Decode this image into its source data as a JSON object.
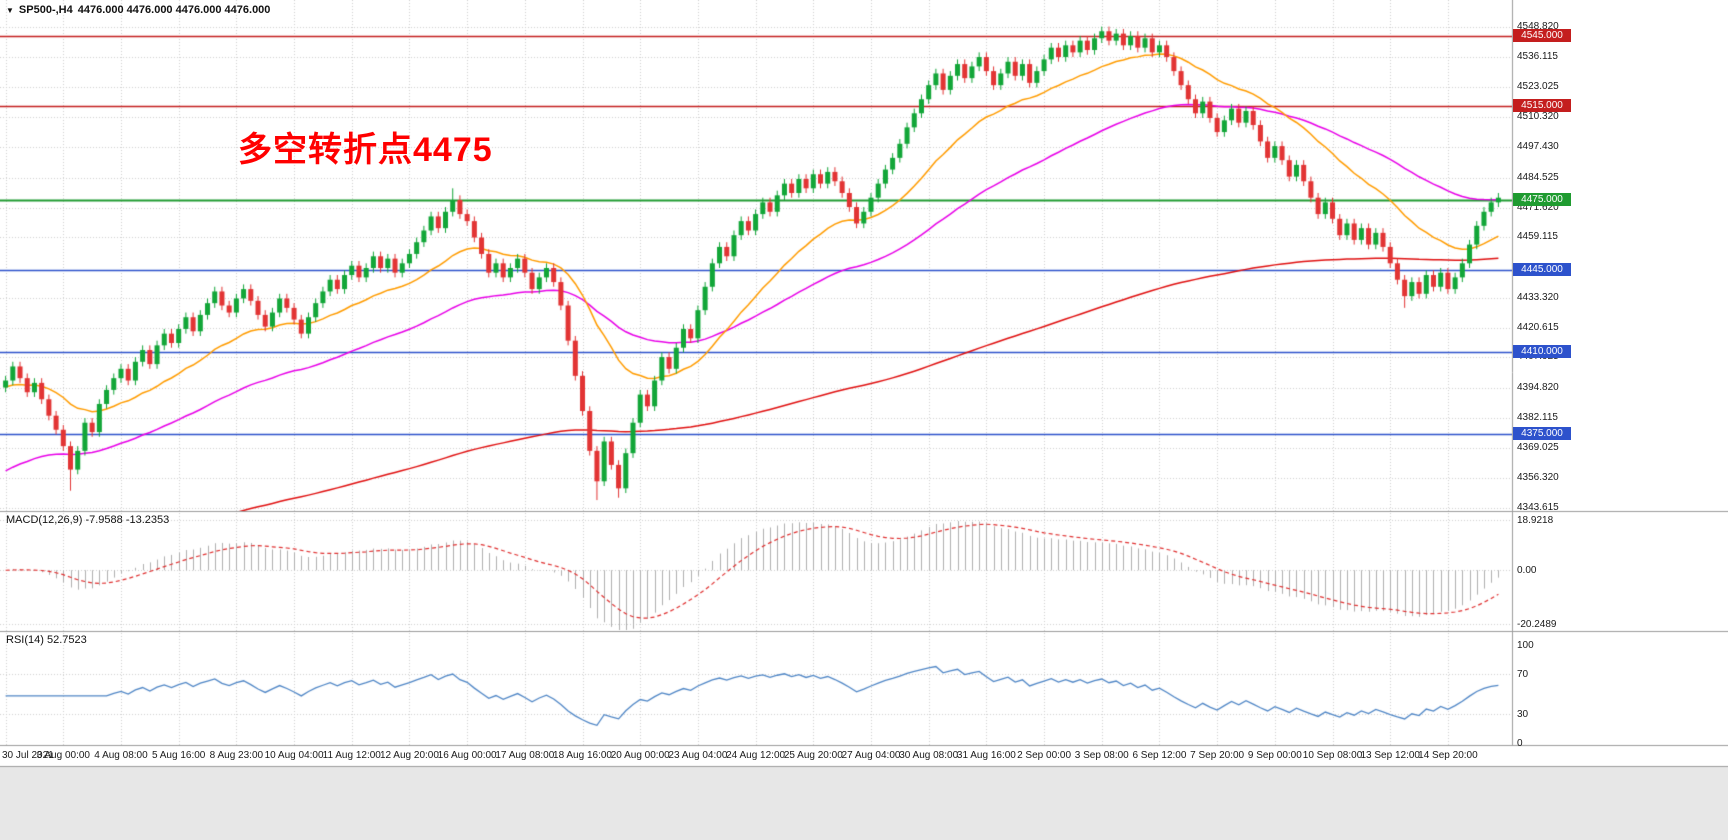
{
  "window": {
    "title_icon": "▼",
    "title_symbol": "SP500-,H4",
    "title_quotes": "4476.000 4476.000 4476.000 4476.000"
  },
  "annotation": {
    "text": "多空转折点4475",
    "color": "#ff0000"
  },
  "panes": {
    "macd": {
      "label": "MACD(12,26,9) -7.9588 -13.2353"
    },
    "rsi": {
      "label": "RSI(14) 52.7523"
    }
  },
  "chart_data": {
    "type": "candlestick",
    "symbol": "SP500-",
    "timeframe": "H4",
    "grid": true,
    "bars_per_label": 8,
    "x_labels": [
      "30 Jul 2021",
      "3 Aug 00:00",
      "4 Aug 08:00",
      "5 Aug 16:00",
      "8 Aug 23:00",
      "10 Aug 04:00",
      "11 Aug 12:00",
      "12 Aug 20:00",
      "16 Aug 00:00",
      "17 Aug 08:00",
      "18 Aug 16:00",
      "20 Aug 00:00",
      "23 Aug 04:00",
      "24 Aug 12:00",
      "25 Aug 20:00",
      "27 Aug 04:00",
      "30 Aug 08:00",
      "31 Aug 16:00",
      "2 Sep 00:00",
      "3 Sep 08:00",
      "6 Sep 12:00",
      "7 Sep 20:00",
      "9 Sep 00:00",
      "10 Sep 08:00",
      "13 Sep 12:00",
      "14 Sep 20:00"
    ],
    "y_axis": {
      "max": 4548.82,
      "min": 4343.615,
      "ticks": [
        "4548.820",
        "4536.115",
        "4523.025",
        "4510.320",
        "4497.430",
        "4484.525",
        "4471.620",
        "4459.115",
        "4433.320",
        "4420.615",
        "4407.925",
        "4394.820",
        "4382.115",
        "4369.025",
        "4356.320",
        "4343.615"
      ]
    },
    "levels": [
      {
        "price": 4545,
        "label": "4545.000",
        "color": "#c41e1e",
        "width": 1.5
      },
      {
        "price": 4515,
        "label": "4515.000",
        "color": "#c41e1e",
        "width": 1.5
      },
      {
        "price": 4475,
        "label": "4475.000",
        "color": "#1f9b30",
        "width": 2
      },
      {
        "price": 4445,
        "label": "4445.000",
        "color": "#2d52cc",
        "width": 1.5
      },
      {
        "price": 4410,
        "label": "4410.000",
        "color": "#2d52cc",
        "width": 1.5
      },
      {
        "price": 4375,
        "label": "4375.000",
        "color": "#2d52cc",
        "width": 1.5
      }
    ],
    "moving_averages": [
      {
        "name": "ma-slow",
        "color": "#e01010",
        "period": 221,
        "seed": 4320
      },
      {
        "name": "ma-mid",
        "color": "#e800e8",
        "period": 55,
        "seed": 4358
      },
      {
        "name": "ma-fast",
        "color": "#ff9c00",
        "period": 21,
        "seed": 4395
      }
    ],
    "macd": {
      "fast": 12,
      "slow": 26,
      "signal": 9,
      "main_last": -7.9588,
      "signal_last": -13.2353,
      "scale_max": 18.9218,
      "scale_min": -20.2489,
      "axis": [
        {
          "label": "18.9218",
          "value": 18.9218
        },
        {
          "label": "0.00",
          "value": 0
        },
        {
          "label": "-20.2489",
          "value": -20.2489
        }
      ]
    },
    "rsi": {
      "period": 14,
      "last": 52.7523,
      "axis": [
        {
          "label": "100",
          "value": 100
        },
        {
          "label": "70",
          "value": 70
        },
        {
          "label": "30",
          "value": 30
        },
        {
          "label": "0",
          "value": 0
        }
      ],
      "dotted_levels": [
        70,
        30
      ]
    },
    "colors": {
      "up": "#12a638",
      "down": "#e23434",
      "macd_hist": "#b0b0b0",
      "macd_signal": "#e03030",
      "rsi_line": "#4f86c6",
      "grid": "#cfcfcf",
      "separator": "#9c9c9c",
      "footer": "#e7e7e7"
    },
    "candles": [
      [
        4395,
        4400,
        4393,
        4398
      ],
      [
        4398,
        4406,
        4396,
        4404
      ],
      [
        4404,
        4406,
        4397,
        4399
      ],
      [
        4399,
        4401,
        4391,
        4393
      ],
      [
        4393,
        4399,
        4391,
        4397
      ],
      [
        4397,
        4399,
        4388,
        4390
      ],
      [
        4390,
        4392,
        4381,
        4383
      ],
      [
        4383,
        4385,
        4375,
        4377
      ],
      [
        4377,
        4379,
        4368,
        4370
      ],
      [
        4370,
        4372,
        4351,
        4360
      ],
      [
        4360,
        4370,
        4358,
        4368
      ],
      [
        4368,
        4382,
        4366,
        4380
      ],
      [
        4380,
        4382,
        4374,
        4376
      ],
      [
        4376,
        4390,
        4374,
        4388
      ],
      [
        4388,
        4396,
        4386,
        4394
      ],
      [
        4394,
        4401,
        4392,
        4399
      ],
      [
        4399,
        4405,
        4397,
        4403
      ],
      [
        4403,
        4405,
        4396,
        4398
      ],
      [
        4398,
        4408,
        4396,
        4406
      ],
      [
        4406,
        4413,
        4404,
        4411
      ],
      [
        4411,
        4413,
        4403,
        4405
      ],
      [
        4405,
        4415,
        4403,
        4413
      ],
      [
        4413,
        4420,
        4411,
        4418
      ],
      [
        4418,
        4420,
        4412,
        4414
      ],
      [
        4414,
        4422,
        4412,
        4420
      ],
      [
        4420,
        4427,
        4418,
        4425
      ],
      [
        4425,
        4427,
        4417,
        4419
      ],
      [
        4419,
        4428,
        4417,
        4426
      ],
      [
        4426,
        4433,
        4424,
        4431
      ],
      [
        4431,
        4438,
        4429,
        4436
      ],
      [
        4436,
        4438,
        4428,
        4430
      ],
      [
        4430,
        4432,
        4425,
        4427
      ],
      [
        4427,
        4435,
        4425,
        4433
      ],
      [
        4433,
        4439,
        4431,
        4437
      ],
      [
        4437,
        4439,
        4430,
        4432
      ],
      [
        4432,
        4434,
        4424,
        4426
      ],
      [
        4426,
        4428,
        4419,
        4421
      ],
      [
        4421,
        4429,
        4419,
        4427
      ],
      [
        4427,
        4435,
        4425,
        4433
      ],
      [
        4433,
        4435,
        4427,
        4429
      ],
      [
        4429,
        4431,
        4422,
        4424
      ],
      [
        4424,
        4426,
        4416,
        4418
      ],
      [
        4418,
        4427,
        4416,
        4425
      ],
      [
        4425,
        4433,
        4423,
        4431
      ],
      [
        4431,
        4438,
        4429,
        4436
      ],
      [
        4436,
        4443,
        4434,
        4441
      ],
      [
        4441,
        4443,
        4435,
        4437
      ],
      [
        4437,
        4445,
        4435,
        4443
      ],
      [
        4443,
        4449,
        4441,
        4447
      ],
      [
        4447,
        4449,
        4440,
        4442
      ],
      [
        4442,
        4448,
        4440,
        4446
      ],
      [
        4446,
        4453,
        4444,
        4451
      ],
      [
        4451,
        4453,
        4444,
        4446
      ],
      [
        4446,
        4452,
        4444,
        4450
      ],
      [
        4450,
        4452,
        4442,
        4444
      ],
      [
        4444,
        4450,
        4442,
        4448
      ],
      [
        4448,
        4454,
        4446,
        4452
      ],
      [
        4452,
        4459,
        4450,
        4457
      ],
      [
        4457,
        4464,
        4455,
        4462
      ],
      [
        4462,
        4470,
        4460,
        4468
      ],
      [
        4468,
        4470,
        4461,
        4463
      ],
      [
        4463,
        4472,
        4461,
        4470
      ],
      [
        4470,
        4480,
        4468,
        4475
      ],
      [
        4475,
        4477,
        4467,
        4469
      ],
      [
        4469,
        4471,
        4464,
        4466
      ],
      [
        4466,
        4468,
        4457,
        4459
      ],
      [
        4459,
        4461,
        4450,
        4452
      ],
      [
        4452,
        4454,
        4442,
        4444
      ],
      [
        4444,
        4450,
        4442,
        4448
      ],
      [
        4448,
        4450,
        4440,
        4442
      ],
      [
        4442,
        4448,
        4440,
        4446
      ],
      [
        4446,
        4452,
        4444,
        4450
      ],
      [
        4450,
        4452,
        4442,
        4444
      ],
      [
        4444,
        4446,
        4435,
        4437
      ],
      [
        4437,
        4444,
        4435,
        4442
      ],
      [
        4442,
        4448,
        4440,
        4446
      ],
      [
        4446,
        4448,
        4438,
        4440
      ],
      [
        4440,
        4442,
        4428,
        4430
      ],
      [
        4430,
        4432,
        4413,
        4415
      ],
      [
        4415,
        4417,
        4398,
        4400
      ],
      [
        4400,
        4402,
        4383,
        4385
      ],
      [
        4385,
        4387,
        4366,
        4368
      ],
      [
        4368,
        4370,
        4347,
        4355
      ],
      [
        4355,
        4374,
        4353,
        4372
      ],
      [
        4372,
        4374,
        4360,
        4362
      ],
      [
        4362,
        4364,
        4348,
        4352
      ],
      [
        4352,
        4369,
        4350,
        4367
      ],
      [
        4367,
        4382,
        4365,
        4380
      ],
      [
        4380,
        4394,
        4378,
        4392
      ],
      [
        4392,
        4394,
        4385,
        4387
      ],
      [
        4387,
        4400,
        4385,
        4398
      ],
      [
        4398,
        4410,
        4396,
        4408
      ],
      [
        4408,
        4410,
        4401,
        4403
      ],
      [
        4403,
        4414,
        4401,
        4412
      ],
      [
        4412,
        4422,
        4410,
        4420
      ],
      [
        4420,
        4422,
        4414,
        4416
      ],
      [
        4416,
        4430,
        4414,
        4428
      ],
      [
        4428,
        4440,
        4426,
        4438
      ],
      [
        4438,
        4450,
        4436,
        4448
      ],
      [
        4448,
        4457,
        4446,
        4455
      ],
      [
        4455,
        4457,
        4449,
        4451
      ],
      [
        4451,
        4462,
        4449,
        4460
      ],
      [
        4460,
        4468,
        4458,
        4466
      ],
      [
        4466,
        4468,
        4460,
        4462
      ],
      [
        4462,
        4471,
        4460,
        4469
      ],
      [
        4469,
        4476,
        4467,
        4474
      ],
      [
        4474,
        4476,
        4468,
        4470
      ],
      [
        4470,
        4479,
        4468,
        4477
      ],
      [
        4477,
        4484,
        4475,
        4482
      ],
      [
        4482,
        4484,
        4476,
        4478
      ],
      [
        4478,
        4486,
        4476,
        4484
      ],
      [
        4484,
        4486,
        4478,
        4480
      ],
      [
        4480,
        4488,
        4478,
        4486
      ],
      [
        4486,
        4488,
        4480,
        4482
      ],
      [
        4482,
        4489,
        4480,
        4487
      ],
      [
        4487,
        4489,
        4481,
        4483
      ],
      [
        4483,
        4485,
        4476,
        4478
      ],
      [
        4478,
        4480,
        4470,
        4472
      ],
      [
        4472,
        4474,
        4463,
        4465
      ],
      [
        4465,
        4472,
        4463,
        4470
      ],
      [
        4470,
        4478,
        4468,
        4476
      ],
      [
        4476,
        4484,
        4474,
        4482
      ],
      [
        4482,
        4490,
        4480,
        4488
      ],
      [
        4488,
        4495,
        4486,
        4493
      ],
      [
        4493,
        4501,
        4491,
        4499
      ],
      [
        4499,
        4508,
        4497,
        4506
      ],
      [
        4506,
        4514,
        4504,
        4512
      ],
      [
        4512,
        4520,
        4510,
        4518
      ],
      [
        4518,
        4526,
        4516,
        4524
      ],
      [
        4524,
        4531,
        4522,
        4529
      ],
      [
        4529,
        4531,
        4520,
        4522
      ],
      [
        4522,
        4530,
        4520,
        4528
      ],
      [
        4528,
        4535,
        4526,
        4533
      ],
      [
        4533,
        4535,
        4525,
        4527
      ],
      [
        4527,
        4534,
        4525,
        4532
      ],
      [
        4532,
        4538,
        4530,
        4536
      ],
      [
        4536,
        4538,
        4528,
        4530
      ],
      [
        4530,
        4532,
        4522,
        4524
      ],
      [
        4524,
        4531,
        4522,
        4529
      ],
      [
        4529,
        4536,
        4527,
        4534
      ],
      [
        4534,
        4536,
        4526,
        4528
      ],
      [
        4528,
        4535,
        4526,
        4533
      ],
      [
        4533,
        4535,
        4523,
        4525
      ],
      [
        4525,
        4532,
        4523,
        4530
      ],
      [
        4530,
        4537,
        4528,
        4535
      ],
      [
        4535,
        4542,
        4533,
        4540
      ],
      [
        4540,
        4542,
        4534,
        4536
      ],
      [
        4536,
        4543,
        4534,
        4541
      ],
      [
        4541,
        4543,
        4536,
        4538
      ],
      [
        4538,
        4545,
        4536,
        4543
      ],
      [
        4543,
        4545,
        4537,
        4539
      ],
      [
        4539,
        4546,
        4537,
        4544
      ],
      [
        4544,
        4549,
        4542,
        4547
      ],
      [
        4547,
        4549,
        4541,
        4543
      ],
      [
        4543,
        4548,
        4541,
        4546
      ],
      [
        4546,
        4548,
        4539,
        4541
      ],
      [
        4541,
        4547,
        4539,
        4545
      ],
      [
        4545,
        4547,
        4538,
        4540
      ],
      [
        4540,
        4546,
        4538,
        4544
      ],
      [
        4544,
        4546,
        4536,
        4538
      ],
      [
        4538,
        4543,
        4536,
        4541
      ],
      [
        4541,
        4543,
        4534,
        4536
      ],
      [
        4536,
        4538,
        4528,
        4530
      ],
      [
        4530,
        4532,
        4522,
        4524
      ],
      [
        4524,
        4526,
        4516,
        4518
      ],
      [
        4518,
        4520,
        4510,
        4512
      ],
      [
        4512,
        4519,
        4510,
        4517
      ],
      [
        4517,
        4519,
        4508,
        4510
      ],
      [
        4510,
        4512,
        4502,
        4504
      ],
      [
        4504,
        4511,
        4502,
        4509
      ],
      [
        4509,
        4516,
        4507,
        4514
      ],
      [
        4514,
        4516,
        4506,
        4508
      ],
      [
        4508,
        4515,
        4506,
        4513
      ],
      [
        4513,
        4515,
        4505,
        4507
      ],
      [
        4507,
        4509,
        4498,
        4500
      ],
      [
        4500,
        4502,
        4491,
        4493
      ],
      [
        4493,
        4500,
        4491,
        4498
      ],
      [
        4498,
        4500,
        4490,
        4492
      ],
      [
        4492,
        4494,
        4483,
        4485
      ],
      [
        4485,
        4492,
        4483,
        4490
      ],
      [
        4490,
        4492,
        4481,
        4483
      ],
      [
        4483,
        4485,
        4474,
        4476
      ],
      [
        4476,
        4478,
        4467,
        4469
      ],
      [
        4469,
        4476,
        4467,
        4474
      ],
      [
        4474,
        4476,
        4465,
        4467
      ],
      [
        4467,
        4469,
        4458,
        4460
      ],
      [
        4460,
        4467,
        4458,
        4465
      ],
      [
        4465,
        4467,
        4456,
        4458
      ],
      [
        4458,
        4465,
        4456,
        4463
      ],
      [
        4463,
        4465,
        4454,
        4456
      ],
      [
        4456,
        4463,
        4454,
        4461
      ],
      [
        4461,
        4463,
        4453,
        4455
      ],
      [
        4455,
        4457,
        4446,
        4448
      ],
      [
        4448,
        4450,
        4439,
        4441
      ],
      [
        4441,
        4443,
        4429,
        4434
      ],
      [
        4434,
        4442,
        4432,
        4440
      ],
      [
        4440,
        4442,
        4433,
        4435
      ],
      [
        4435,
        4445,
        4433,
        4443
      ],
      [
        4443,
        4445,
        4436,
        4438
      ],
      [
        4438,
        4446,
        4436,
        4444
      ],
      [
        4444,
        4446,
        4435,
        4437
      ],
      [
        4437,
        4444,
        4435,
        4442
      ],
      [
        4442,
        4450,
        4440,
        4448
      ],
      [
        4448,
        4458,
        4446,
        4456
      ],
      [
        4456,
        4466,
        4454,
        4464
      ],
      [
        4464,
        4472,
        4462,
        4470
      ],
      [
        4470,
        4476,
        4468,
        4474
      ],
      [
        4474,
        4478,
        4472,
        4476
      ]
    ]
  }
}
